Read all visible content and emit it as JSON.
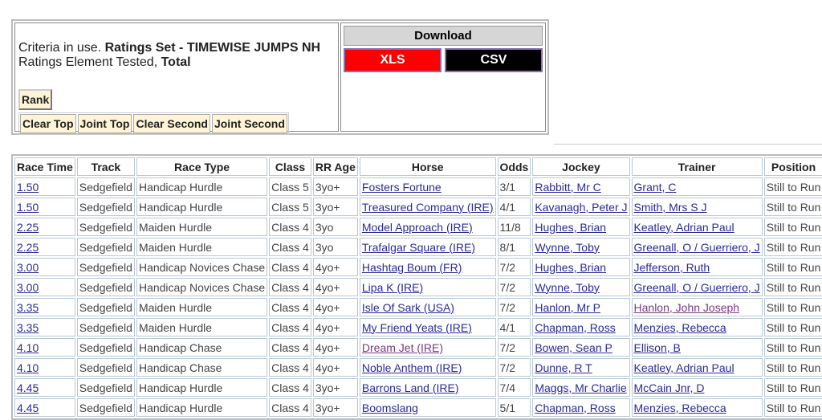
{
  "criteria": {
    "prefix": "Criteria in use. ",
    "set": "Ratings Set - TIMEWISE JUMPS NH",
    "element_prefix": "Ratings Element Tested, ",
    "element": "Total"
  },
  "buttons": {
    "rank": "Rank",
    "clear_top": "Clear Top",
    "joint_top": "Joint Top",
    "clear_second": "Clear Second",
    "joint_second": "Joint Second"
  },
  "download": {
    "title": "Download",
    "xls": "XLS",
    "csv": "CSV",
    "xls_color": "#ff0000",
    "csv_color": "#000000"
  },
  "table": {
    "headers": [
      "Race Time",
      "Track",
      "Race Type",
      "Class",
      "RR Age",
      "Horse",
      "Odds",
      "Jockey",
      "Trainer",
      "Position"
    ],
    "rows": [
      [
        "1.50",
        "Sedgefield",
        "Handicap Hurdle",
        "Class 5",
        "3yo+",
        "Fosters Fortune",
        "3/1",
        "Rabbitt, Mr C",
        "Grant, C",
        "Still to Run"
      ],
      [
        "1.50",
        "Sedgefield",
        "Handicap Hurdle",
        "Class 5",
        "3yo+",
        "Treasured Company (IRE)",
        "4/1",
        "Kavanagh, Peter J",
        "Smith, Mrs S J",
        "Still to Run"
      ],
      [
        "2.25",
        "Sedgefield",
        "Maiden Hurdle",
        "Class 4",
        "3yo",
        "Model Approach (IRE)",
        "11/8",
        "Hughes, Brian",
        "Keatley, Adrian Paul",
        "Still to Run"
      ],
      [
        "2.25",
        "Sedgefield",
        "Maiden Hurdle",
        "Class 4",
        "3yo",
        "Trafalgar Square (IRE)",
        "8/1",
        "Wynne, Toby",
        "Greenall, O / Guerriero, J",
        "Still to Run"
      ],
      [
        "3.00",
        "Sedgefield",
        "Handicap Novices Chase",
        "Class 4",
        "4yo+",
        "Hashtag Boum (FR)",
        "7/2",
        "Hughes, Brian",
        "Jefferson, Ruth",
        "Still to Run"
      ],
      [
        "3.00",
        "Sedgefield",
        "Handicap Novices Chase",
        "Class 4",
        "4yo+",
        "Lipa K (IRE)",
        "7/2",
        "Wynne, Toby",
        "Greenall, O / Guerriero, J",
        "Still to Run"
      ],
      [
        "3.35",
        "Sedgefield",
        "Maiden Hurdle",
        "Class 4",
        "4yo+",
        "Isle Of Sark (USA)",
        "7/2",
        "Hanlon, Mr P",
        "Hanlon, John Joseph",
        "Still to Run"
      ],
      [
        "3.35",
        "Sedgefield",
        "Maiden Hurdle",
        "Class 4",
        "4yo+",
        "My Friend Yeats (IRE)",
        "4/1",
        "Chapman, Ross",
        "Menzies, Rebecca",
        "Still to Run"
      ],
      [
        "4.10",
        "Sedgefield",
        "Handicap Chase",
        "Class 4",
        "4yo+",
        "Dream Jet (IRE)",
        "7/2",
        "Bowen, Sean P",
        "Ellison, B",
        "Still to Run"
      ],
      [
        "4.10",
        "Sedgefield",
        "Handicap Chase",
        "Class 4",
        "4yo+",
        "Noble Anthem (IRE)",
        "7/2",
        "Dunne, R T",
        "Keatley, Adrian Paul",
        "Still to Run"
      ],
      [
        "4.45",
        "Sedgefield",
        "Handicap Hurdle",
        "Class 4",
        "3yo+",
        "Barrons Land (IRE)",
        "7/4",
        "Maggs, Mr Charlie",
        "McCain Jnr, D",
        "Still to Run"
      ],
      [
        "4.45",
        "Sedgefield",
        "Handicap Hurdle",
        "Class 4",
        "3yo+",
        "Boomslang",
        "5/1",
        "Chapman, Ross",
        "Menzies, Rebecca",
        "Still to Run"
      ]
    ]
  }
}
